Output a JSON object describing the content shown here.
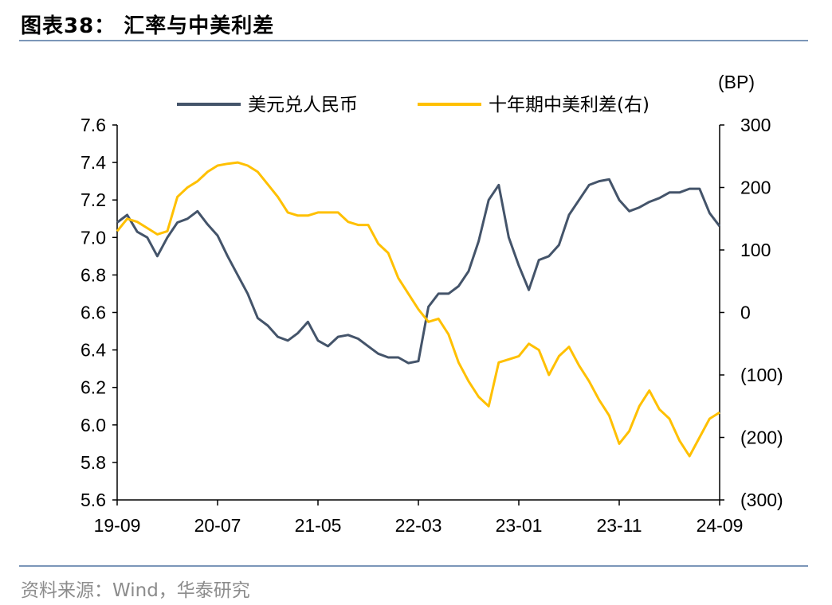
{
  "header": {
    "title": "图表38：  汇率与中美利差"
  },
  "footer": {
    "source": "资料来源：Wind，华泰研究"
  },
  "colors": {
    "rule": "#7b96b8",
    "usdcny": "#44546a",
    "spread": "#ffc000",
    "axis": "#000000"
  },
  "chart_data": {
    "type": "line",
    "right_unit": "(BP)",
    "x_ticks": [
      "19-09",
      "20-07",
      "21-05",
      "22-03",
      "23-01",
      "23-11",
      "24-09"
    ],
    "y_left": {
      "ticks": [
        "7.6",
        "7.4",
        "7.2",
        "7.0",
        "6.8",
        "6.6",
        "6.4",
        "6.2",
        "6.0",
        "5.8",
        "5.6"
      ],
      "ylim": [
        5.6,
        7.6
      ]
    },
    "y_right": {
      "ticks": [
        "300",
        "200",
        "100",
        "0",
        "(100)",
        "(200)",
        "(300)"
      ],
      "ylim": [
        -300,
        300
      ]
    },
    "legend": {
      "position": "top"
    },
    "series": [
      {
        "name": "美元兑人民币",
        "axis": "left",
        "color": "#44546a",
        "x": [
          "2019-09",
          "2019-10",
          "2019-11",
          "2019-12",
          "2020-01",
          "2020-02",
          "2020-03",
          "2020-04",
          "2020-05",
          "2020-06",
          "2020-07",
          "2020-08",
          "2020-09",
          "2020-10",
          "2020-11",
          "2020-12",
          "2021-01",
          "2021-02",
          "2021-03",
          "2021-04",
          "2021-05",
          "2021-06",
          "2021-07",
          "2021-08",
          "2021-09",
          "2021-10",
          "2021-11",
          "2021-12",
          "2022-01",
          "2022-02",
          "2022-03",
          "2022-04",
          "2022-05",
          "2022-06",
          "2022-07",
          "2022-08",
          "2022-09",
          "2022-10",
          "2022-11",
          "2022-12",
          "2023-01",
          "2023-02",
          "2023-03",
          "2023-04",
          "2023-05",
          "2023-06",
          "2023-07",
          "2023-08",
          "2023-09",
          "2023-10",
          "2023-11",
          "2023-12",
          "2024-01",
          "2024-02",
          "2024-03",
          "2024-04",
          "2024-05",
          "2024-06",
          "2024-07",
          "2024-08",
          "2024-09"
        ],
        "values": [
          7.08,
          7.12,
          7.03,
          7.0,
          6.9,
          7.0,
          7.08,
          7.1,
          7.14,
          7.07,
          7.01,
          6.9,
          6.8,
          6.7,
          6.57,
          6.53,
          6.47,
          6.45,
          6.49,
          6.55,
          6.45,
          6.42,
          6.47,
          6.48,
          6.46,
          6.42,
          6.38,
          6.36,
          6.36,
          6.33,
          6.34,
          6.63,
          6.7,
          6.7,
          6.74,
          6.82,
          6.98,
          7.2,
          7.28,
          7.0,
          6.85,
          6.72,
          6.88,
          6.9,
          6.96,
          7.12,
          7.2,
          7.28,
          7.3,
          7.31,
          7.2,
          7.14,
          7.16,
          7.19,
          7.21,
          7.24,
          7.24,
          7.26,
          7.26,
          7.13,
          7.06
        ]
      },
      {
        "name": "十年期中美利差(右)",
        "axis": "right",
        "color": "#ffc000",
        "x": [
          "2019-09",
          "2019-10",
          "2019-11",
          "2019-12",
          "2020-01",
          "2020-02",
          "2020-03",
          "2020-04",
          "2020-05",
          "2020-06",
          "2020-07",
          "2020-08",
          "2020-09",
          "2020-10",
          "2020-11",
          "2020-12",
          "2021-01",
          "2021-02",
          "2021-03",
          "2021-04",
          "2021-05",
          "2021-06",
          "2021-07",
          "2021-08",
          "2021-09",
          "2021-10",
          "2021-11",
          "2021-12",
          "2022-01",
          "2022-02",
          "2022-03",
          "2022-04",
          "2022-05",
          "2022-06",
          "2022-07",
          "2022-08",
          "2022-09",
          "2022-10",
          "2022-11",
          "2022-12",
          "2023-01",
          "2023-02",
          "2023-03",
          "2023-04",
          "2023-05",
          "2023-06",
          "2023-07",
          "2023-08",
          "2023-09",
          "2023-10",
          "2023-11",
          "2023-12",
          "2024-01",
          "2024-02",
          "2024-03",
          "2024-04",
          "2024-05",
          "2024-06",
          "2024-07",
          "2024-08",
          "2024-09"
        ],
        "values": [
          130,
          150,
          145,
          135,
          125,
          130,
          185,
          200,
          210,
          225,
          235,
          238,
          240,
          235,
          225,
          205,
          185,
          160,
          155,
          155,
          160,
          160,
          160,
          145,
          140,
          140,
          110,
          95,
          55,
          30,
          5,
          -15,
          -10,
          -35,
          -80,
          -110,
          -135,
          -150,
          -80,
          -75,
          -70,
          -50,
          -60,
          -100,
          -70,
          -55,
          -85,
          -110,
          -140,
          -165,
          -210,
          -190,
          -150,
          -125,
          -155,
          -170,
          -205,
          -230,
          -200,
          -170,
          -160
        ]
      }
    ]
  }
}
